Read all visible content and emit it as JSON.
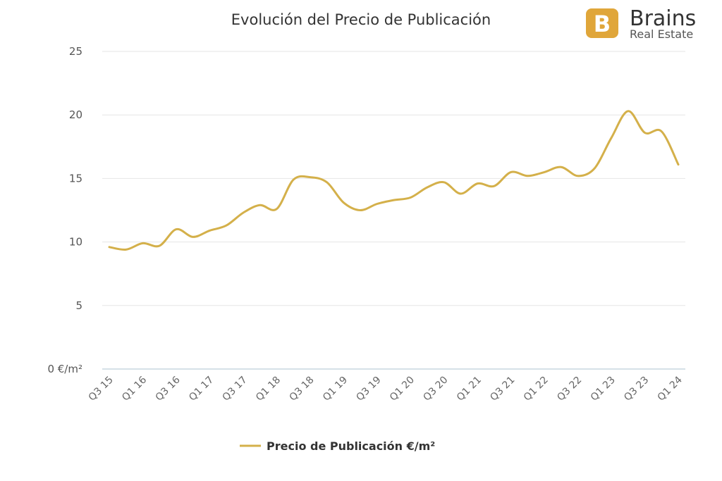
{
  "logo": {
    "name": "Brains",
    "subtitle": "Real Estate",
    "color": "#E0A63A"
  },
  "chart_data": {
    "type": "line",
    "title": "Evolución del Precio de Publicación",
    "xlabel": "",
    "ylabel": "",
    "ylim": [
      0,
      25
    ],
    "y_ticks": [
      0,
      5,
      10,
      15,
      20,
      25
    ],
    "y_tick_labels": [
      "0 €/m²",
      "5",
      "10",
      "15",
      "20",
      "25"
    ],
    "x_tick_labels": [
      "Q3 15",
      "Q1 16",
      "Q3 16",
      "Q1 17",
      "Q3 17",
      "Q1 18",
      "Q3 18",
      "Q1 19",
      "Q3 19",
      "Q1 20",
      "Q3 20",
      "Q1 21",
      "Q3 21",
      "Q1 22",
      "Q3 22",
      "Q1 23",
      "Q3 23",
      "Q1 24"
    ],
    "grid": true,
    "legend_position": "bottom-center",
    "color": "#D4B04A",
    "series": [
      {
        "name": "Precio de Publicación €/m²",
        "x": [
          "Q3 15",
          "Q4 15",
          "Q1 16",
          "Q2 16",
          "Q3 16",
          "Q4 16",
          "Q1 17",
          "Q2 17",
          "Q3 17",
          "Q4 17",
          "Q1 18",
          "Q2 18",
          "Q3 18",
          "Q4 18",
          "Q1 19",
          "Q2 19",
          "Q3 19",
          "Q4 19",
          "Q1 20",
          "Q2 20",
          "Q3 20",
          "Q4 20",
          "Q1 21",
          "Q2 21",
          "Q3 21",
          "Q4 21",
          "Q1 22",
          "Q2 22",
          "Q3 22",
          "Q4 22",
          "Q1 23",
          "Q2 23",
          "Q3 23",
          "Q4 23",
          "Q1 24"
        ],
        "values": [
          9.6,
          9.4,
          9.9,
          9.7,
          11.0,
          10.4,
          10.9,
          11.3,
          12.3,
          12.9,
          12.6,
          14.9,
          15.1,
          14.7,
          13.1,
          12.5,
          13.0,
          13.3,
          13.5,
          14.3,
          14.7,
          13.8,
          14.6,
          14.4,
          15.5,
          15.2,
          15.5,
          15.9,
          15.2,
          15.8,
          18.2,
          20.3,
          18.6,
          18.7,
          16.1
        ]
      }
    ]
  }
}
